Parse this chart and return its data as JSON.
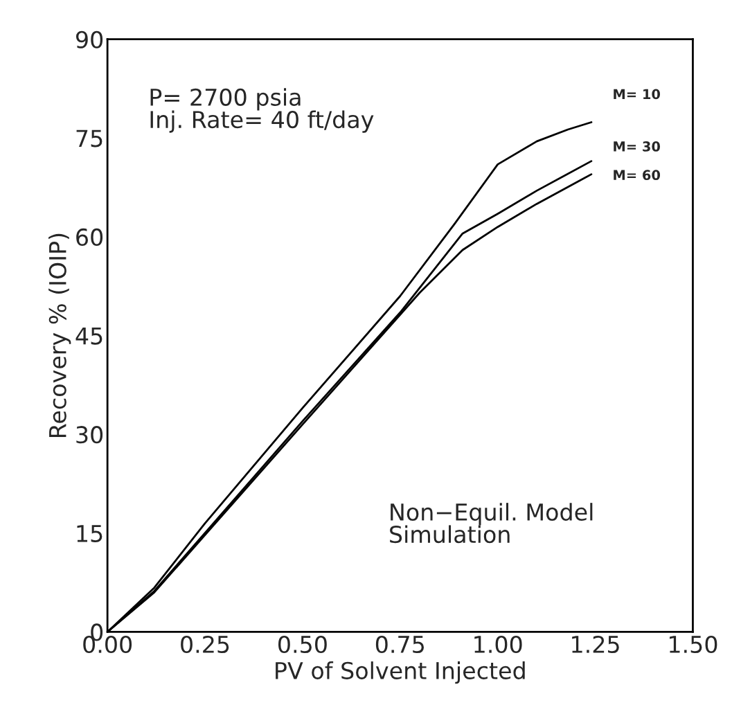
{
  "chart_data": {
    "type": "line",
    "xlabel": "PV of Solvent Injected",
    "ylabel": "Recovery % (IOIP)",
    "xlim": [
      0,
      1.5
    ],
    "ylim": [
      0,
      90
    ],
    "xticks": [
      {
        "value": 0,
        "label": "0.00"
      },
      {
        "value": 0.25,
        "label": "0.25"
      },
      {
        "value": 0.5,
        "label": "0.50"
      },
      {
        "value": 0.75,
        "label": "0.75"
      },
      {
        "value": 1.0,
        "label": "1.00"
      },
      {
        "value": 1.25,
        "label": "1.25"
      },
      {
        "value": 1.5,
        "label": "1.50"
      }
    ],
    "yticks": [
      0,
      15,
      30,
      45,
      60,
      75,
      90
    ],
    "grid": false,
    "legend": false,
    "marker": "none",
    "line_style": "solid",
    "series": [
      {
        "name": "M= 10",
        "color": "#000000",
        "x": [
          0,
          0.12,
          0.25,
          0.5,
          0.75,
          0.89,
          1.0,
          1.1,
          1.18,
          1.24
        ],
        "values": [
          0,
          6.7,
          16.5,
          34,
          51,
          62,
          71,
          74.5,
          76.3,
          77.4
        ]
      },
      {
        "name": "M= 30",
        "color": "#000000",
        "x": [
          0,
          0.12,
          0.5,
          0.75,
          0.91,
          1.0,
          1.1,
          1.24
        ],
        "values": [
          0,
          6.2,
          32,
          48.5,
          60.5,
          63.5,
          67,
          71.5
        ]
      },
      {
        "name": "M= 60",
        "color": "#000000",
        "x": [
          0,
          0.12,
          0.5,
          0.8,
          0.91,
          1.0,
          1.1,
          1.24
        ],
        "values": [
          0,
          6,
          31.5,
          51.5,
          58,
          61.5,
          65,
          69.5
        ]
      }
    ],
    "annotations": [
      "P= 2700 psia\nInj. Rate= 40 ft/day",
      "Non−Equil. Model\nSimulation"
    ]
  }
}
